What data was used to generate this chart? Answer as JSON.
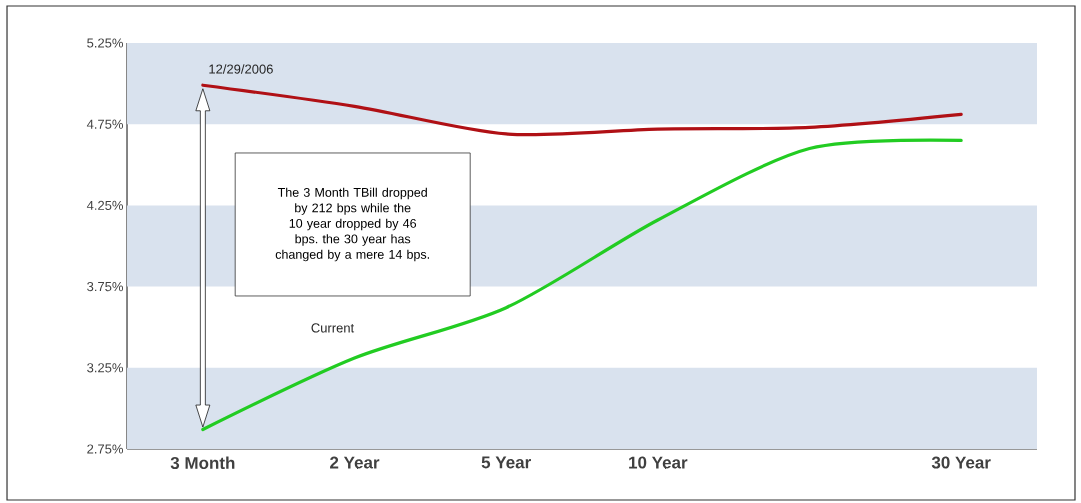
{
  "chart_data": {
    "type": "line",
    "categories": [
      "3 Month",
      "2 Year",
      "5 Year",
      "10 Year",
      null,
      "30 Year"
    ],
    "series": [
      {
        "name": "12/29/2006",
        "color": "#b01015",
        "values": [
          4.99,
          4.86,
          4.69,
          4.72,
          4.73,
          4.81
        ]
      },
      {
        "name": "Current",
        "color": "#22cc22",
        "values": [
          2.87,
          3.31,
          3.62,
          4.16,
          4.6,
          4.65
        ]
      }
    ],
    "ylim": [
      2.75,
      5.25
    ],
    "yticks": [
      {
        "value": 2.75,
        "label": "2.75%"
      },
      {
        "value": 3.25,
        "label": "3.25%"
      },
      {
        "value": 3.75,
        "label": "3.75%"
      },
      {
        "value": 4.25,
        "label": "4.25%"
      },
      {
        "value": 4.75,
        "label": "4.75%"
      },
      {
        "value": 5.25,
        "label": "5.25%"
      }
    ],
    "bands": [
      {
        "axis": "y",
        "from": 4.75,
        "to": 5.25,
        "color": "#d9e2ee"
      },
      {
        "axis": "y",
        "from": 3.75,
        "to": 4.25,
        "color": "#d9e2ee"
      },
      {
        "axis": "y",
        "from": 2.75,
        "to": 3.25,
        "color": "#d9e2ee"
      }
    ],
    "annotations": [
      "The 3 Month TBill dropped by 212 bps while the 10 year dropped by 46 bps. the 30 year has changed by a mere 14 bps."
    ],
    "grid": false,
    "legend": false,
    "marker": "none",
    "line_style": "solid"
  }
}
